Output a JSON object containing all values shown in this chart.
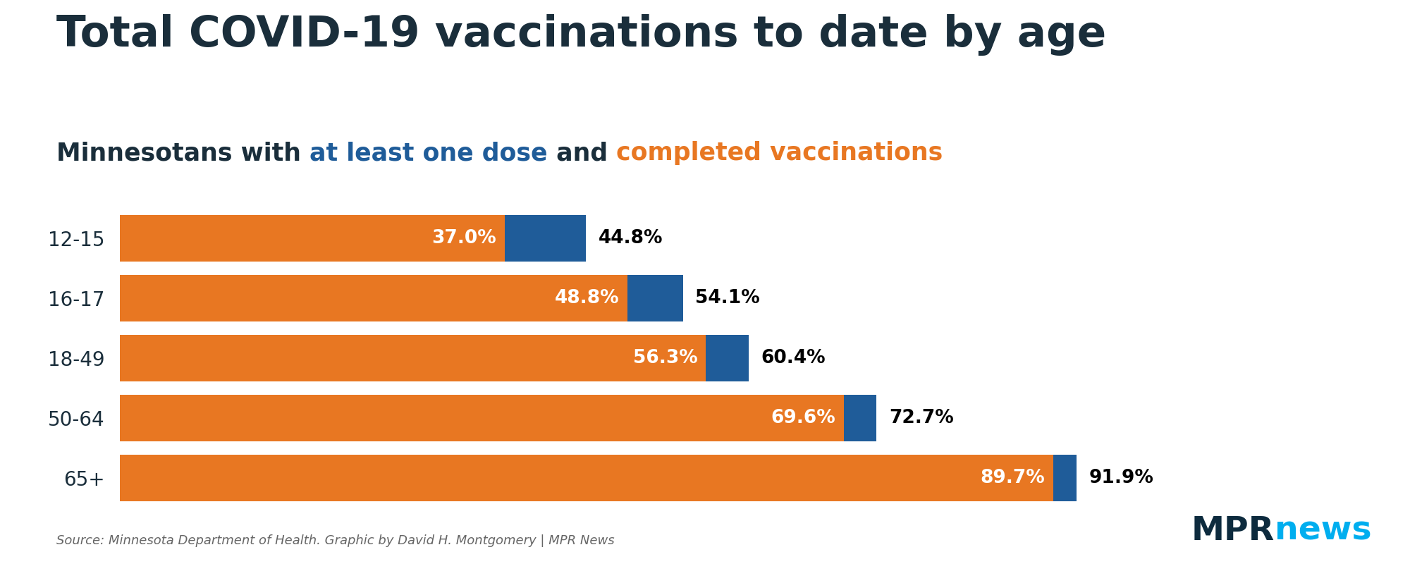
{
  "title": "Total COVID-19 vaccinations to date by age",
  "subtitle_plain": "Minnesotans with ",
  "subtitle_blue": "at least one dose",
  "subtitle_mid": " and ",
  "subtitle_orange": "completed vaccinations",
  "categories": [
    "12-15",
    "16-17",
    "18-49",
    "50-64",
    "65+"
  ],
  "at_least_one": [
    44.8,
    54.1,
    60.4,
    72.7,
    91.9
  ],
  "completed": [
    37.0,
    48.8,
    56.3,
    69.6,
    89.7
  ],
  "orange_color": "#E87722",
  "blue_color": "#1F5C99",
  "title_color": "#1a2e3b",
  "bg_color": "#FFFFFF",
  "bar_height": 0.78,
  "source_text": "Source: Minnesota Department of Health. Graphic by David H. Montgomery | MPR News",
  "source_color": "#666666",
  "mpr_dark": "#0D2B3E",
  "mpr_light_blue": "#00AEEF",
  "xlim": [
    0,
    105
  ]
}
